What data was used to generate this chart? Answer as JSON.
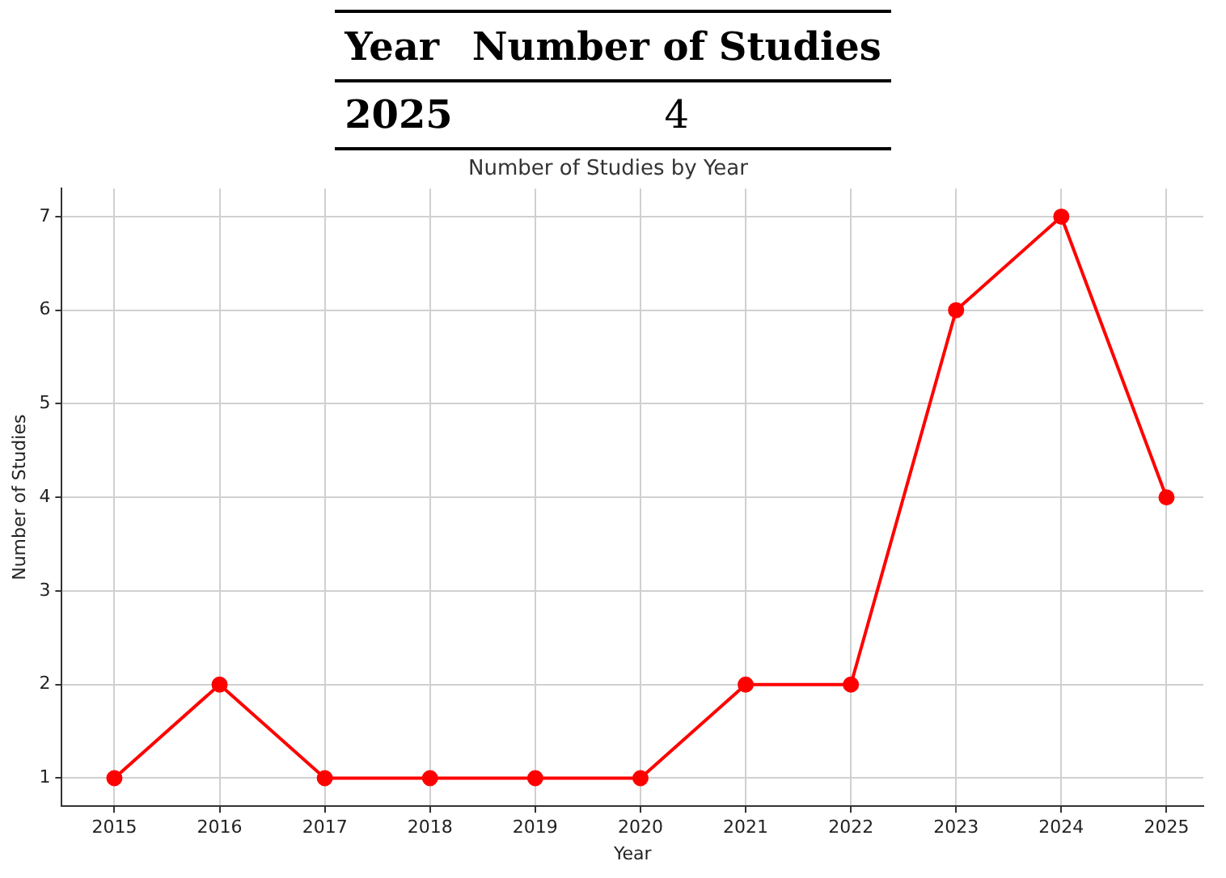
{
  "chart_data": [
    {
      "type": "other",
      "annotations": [
        "Year",
        "Number of Studies",
        "2025",
        "4"
      ]
    },
    {
      "type": "line",
      "title": "Number of Studies by Year",
      "xlabel": "Year",
      "ylabel": "Number of Studies",
      "x": [
        2015,
        2016,
        2017,
        2018,
        2019,
        2020,
        2021,
        2022,
        2023,
        2024,
        2025
      ],
      "series": [
        {
          "color": "#ff0000",
          "values": [
            1,
            2,
            1,
            1,
            1,
            1,
            2,
            2,
            6,
            7,
            4
          ]
        }
      ],
      "xlim": [
        2014.5,
        2025.35
      ],
      "xticks": [
        2015,
        2016,
        2017,
        2018,
        2019,
        2020,
        2021,
        2022,
        2023,
        2024,
        2025
      ],
      "ylim": [
        0.7,
        7.3
      ],
      "yticks": [
        1,
        2,
        3,
        4,
        5,
        6,
        7
      ],
      "grid": true,
      "legend": false,
      "marker": "circle",
      "line_style": "solid"
    }
  ]
}
